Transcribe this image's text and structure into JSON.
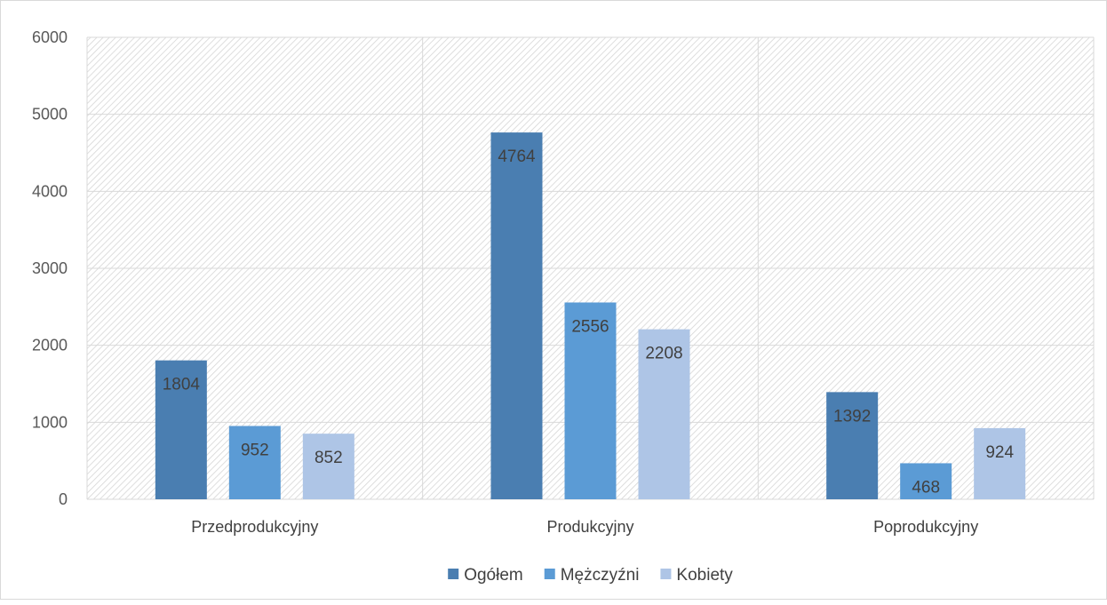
{
  "chart_data": {
    "type": "bar",
    "title": "",
    "xlabel": "",
    "ylabel": "",
    "categories": [
      "Przedprodukcyjny",
      "Produkcyjny",
      "Poprodukcyjny"
    ],
    "series": [
      {
        "name": "Ogółem",
        "color": "#4a7eb1",
        "values": [
          1804,
          4764,
          1392
        ]
      },
      {
        "name": "Mężczyźni",
        "color": "#5b9bd5",
        "values": [
          952,
          2556,
          468
        ]
      },
      {
        "name": "Kobiety",
        "color": "#aec5e6",
        "values": [
          852,
          2208,
          924
        ]
      }
    ],
    "ylim": [
      0,
      6000
    ],
    "yticks": [
      0,
      1000,
      2000,
      3000,
      4000,
      5000,
      6000
    ],
    "grid": true,
    "plot_background": "diagonal-hatch",
    "data_labels": true,
    "legend_position": "bottom"
  }
}
